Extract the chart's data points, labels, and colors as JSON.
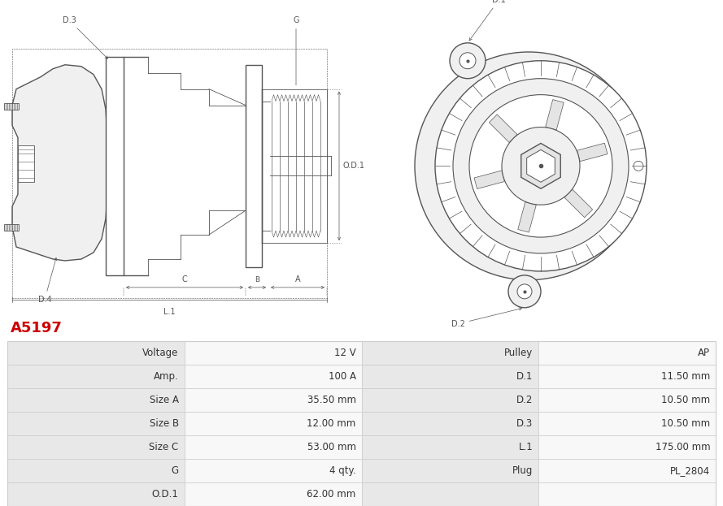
{
  "title": "A5197",
  "title_color": "#cc0000",
  "bg_color": "#ffffff",
  "table_rows": [
    [
      "Voltage",
      "12 V",
      "Pulley",
      "AP"
    ],
    [
      "Amp.",
      "100 A",
      "D.1",
      "11.50 mm"
    ],
    [
      "Size A",
      "35.50 mm",
      "D.2",
      "10.50 mm"
    ],
    [
      "Size B",
      "12.00 mm",
      "D.3",
      "10.50 mm"
    ],
    [
      "Size C",
      "53.00 mm",
      "L.1",
      "175.00 mm"
    ],
    [
      "G",
      "4 qty.",
      "Plug",
      "PL_2804"
    ],
    [
      "O.D.1",
      "62.00 mm",
      "",
      ""
    ]
  ],
  "text_color": "#333333",
  "border_color": "#cccccc",
  "row_bg_label": "#e8e8e8",
  "row_bg_value": "#f8f8f8",
  "font_size_table": 8.5,
  "font_size_title": 13,
  "draw_color": "#555555",
  "dim_color": "#555555"
}
